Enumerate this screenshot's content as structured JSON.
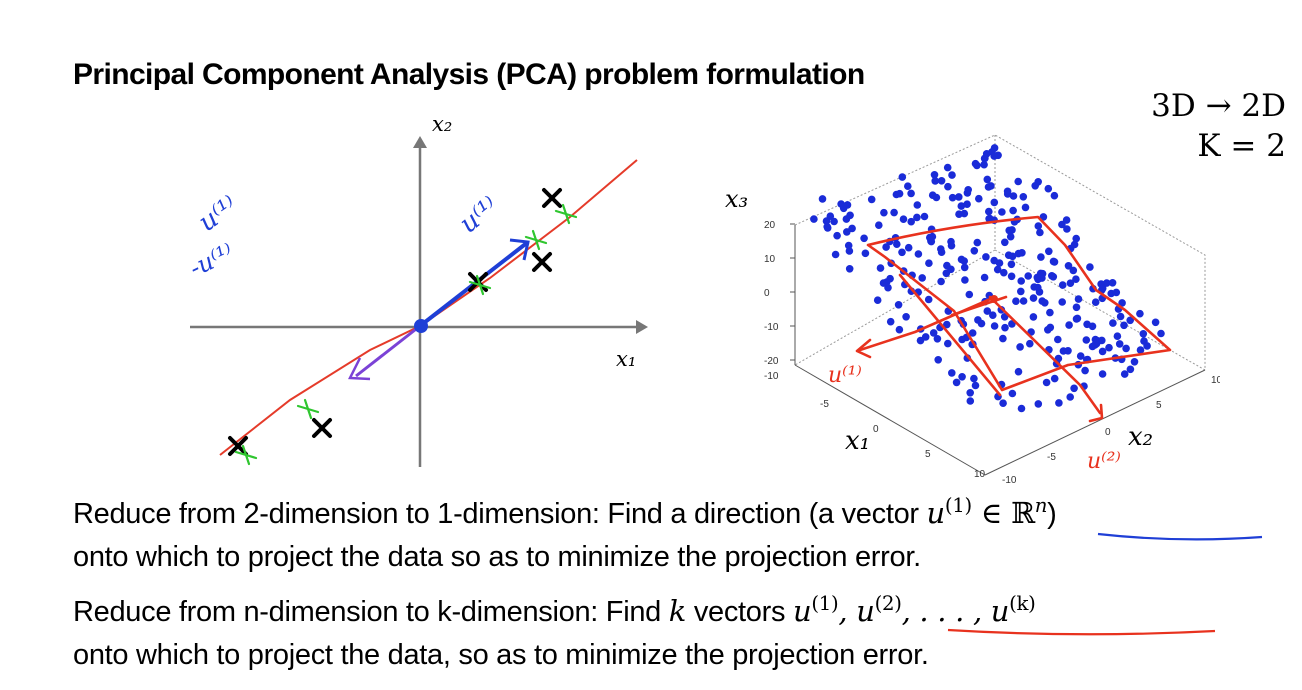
{
  "slide": {
    "title": "Principal Component Analysis (PCA) problem formulation",
    "dim_label": "3D → 2D",
    "k_label": "K = 2"
  },
  "plot2d": {
    "x_axis_label": "x₁",
    "y_axis_label": "x₂",
    "vector_label": "u⁽¹⁾",
    "side_note_1": "u⁽¹⁾",
    "side_note_2": "-u⁽¹⁾",
    "colors": {
      "data_mark": "#000000",
      "projection_line": "#e53b2a",
      "projected": "#2fc62f",
      "vector": "#1f3fd6"
    }
  },
  "plot3d": {
    "x_label": "x₁",
    "y_label": "x₂",
    "z_label": "x₃",
    "z_ticks": [
      "20",
      "10",
      "0",
      "-10",
      "-20"
    ],
    "x_ticks": [
      "-10",
      "-5",
      "0",
      "5",
      "10"
    ],
    "y_ticks": [
      "-10",
      "-5",
      "0",
      "5",
      "10"
    ],
    "u1_label": "u⁽¹⁾",
    "u2_label": "u⁽²⁾",
    "colors": {
      "points": "#1a2bd8",
      "plane": "#e8321e"
    }
  },
  "text": {
    "line1_prefix": "Reduce from 2-dimension to 1-dimension: Find a direction (a vector ",
    "line1_math_u": "u",
    "line1_math_sup": "(1)",
    "line1_math_rest": " ∈ ℝ",
    "line1_math_n": "n",
    "line1_suffix": ")",
    "line2": "onto which to project the data so as to minimize the projection error.",
    "line3_prefix": "Reduce from n-dimension to k-dimension: Find ",
    "line3_k": "k",
    "line3_mid": " vectors ",
    "line3_u1": "u",
    "line3_s1": "(1)",
    "line3_u2": ", u",
    "line3_s2": "(2)",
    "line3_dots": ", . . . , u",
    "line3_s3": "(k)",
    "line4": "onto which to project the data, so as to minimize the projection error."
  }
}
